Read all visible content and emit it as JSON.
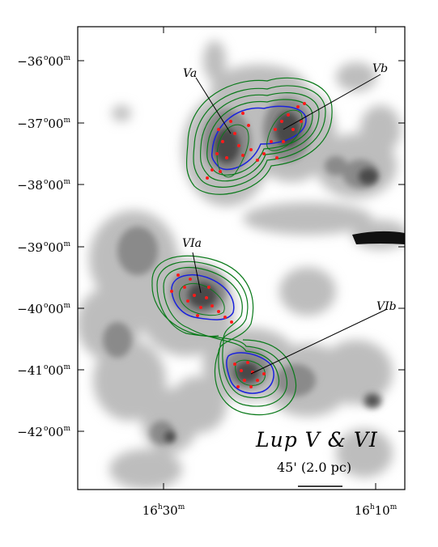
{
  "title": "Lup V & VI",
  "scale_bar": {
    "label": "45' (2.0 pc)"
  },
  "axes": {
    "dec_ticks": [
      {
        "deg": "−36",
        "min": "00",
        "unit": "m"
      },
      {
        "deg": "−37",
        "min": "00",
        "unit": "m"
      },
      {
        "deg": "−38",
        "min": "00",
        "unit": "m"
      },
      {
        "deg": "−39",
        "min": "00",
        "unit": "m"
      },
      {
        "deg": "−40",
        "min": "00",
        "unit": "m"
      },
      {
        "deg": "−41",
        "min": "00",
        "unit": "m"
      },
      {
        "deg": "−42",
        "min": "00",
        "unit": "m"
      }
    ],
    "ra_ticks": [
      {
        "hour": "16",
        "min": "30",
        "unit": "m"
      },
      {
        "hour": "16",
        "min": "10",
        "unit": "m"
      }
    ]
  },
  "regions": [
    {
      "id": "Va",
      "label": "Va"
    },
    {
      "id": "Vb",
      "label": "Vb"
    },
    {
      "id": "VIa",
      "label": "VIa"
    },
    {
      "id": "VIb",
      "label": "VIb"
    }
  ],
  "colors": {
    "extinction": "#555555",
    "outer_contours": "#0a7a1a",
    "inner_contour": "#1a22dd",
    "yso_markers": "#ff1a1a",
    "frame": "#000000"
  }
}
